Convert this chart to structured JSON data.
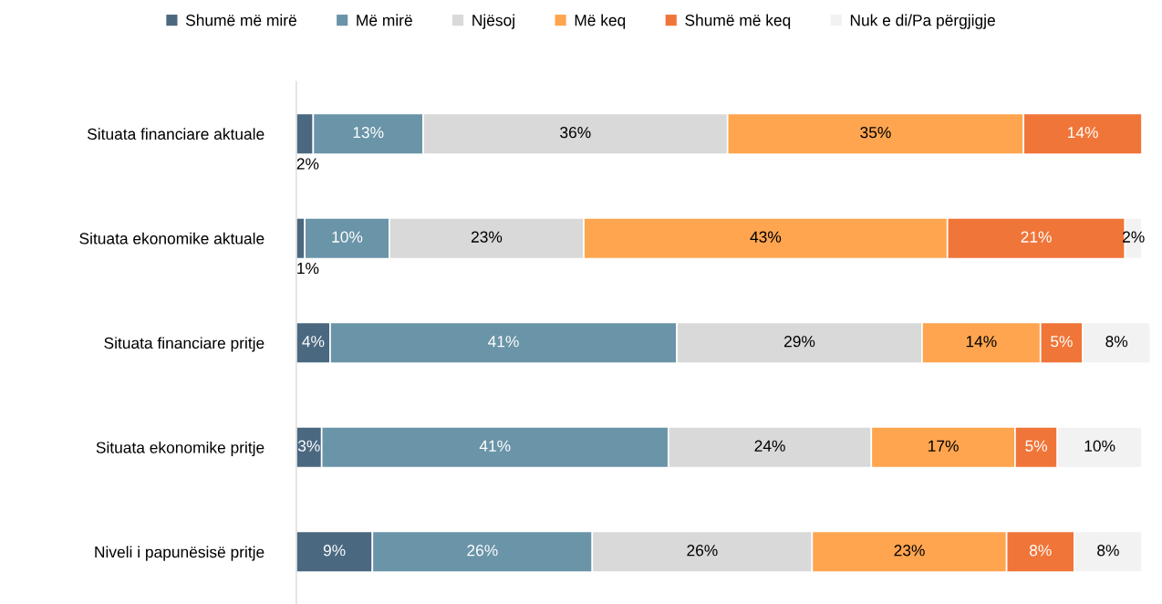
{
  "chart_data": {
    "type": "bar",
    "orientation": "horizontal",
    "stacked": true,
    "legend": "top",
    "grid": false,
    "tick_labels": "y",
    "categories": [
      "Situata financiare aktuale",
      "Situata ekonomike aktuale",
      "Situata financiare pritje",
      "Situata ekonomike pritje",
      "Niveli i papunësisë pritje"
    ],
    "series": [
      {
        "name": "Shumë më mirë",
        "color": "#4a6880",
        "values": [
          2,
          1,
          4,
          3,
          9
        ],
        "value_labels": [
          "2%",
          "1%",
          "4%",
          "3%",
          "9%"
        ]
      },
      {
        "name": "Më mirë",
        "color": "#6a94a8",
        "values": [
          13,
          10,
          41,
          41,
          26
        ],
        "value_labels": [
          "13%",
          "10%",
          "41%",
          "41%",
          "26%"
        ]
      },
      {
        "name": "Njësoj",
        "color": "#d9d9d9",
        "values": [
          36,
          23,
          29,
          24,
          26
        ],
        "value_labels": [
          "36%",
          "23%",
          "29%",
          "24%",
          "26%"
        ]
      },
      {
        "name": "Më keq",
        "color": "#ffa54f",
        "values": [
          35,
          43,
          14,
          17,
          23
        ],
        "value_labels": [
          "35%",
          "43%",
          "14%",
          "17%",
          "23%"
        ]
      },
      {
        "name": "Shumë më keq",
        "color": "#f07538",
        "values": [
          14,
          21,
          5,
          5,
          8
        ],
        "value_labels": [
          "14%",
          "21%",
          "5%",
          "5%",
          "8%"
        ]
      },
      {
        "name": "Nuk e di/Pa përgjigje",
        "color": "#f2f2f2",
        "values": [
          null,
          2,
          8,
          10,
          8
        ],
        "value_labels": [
          null,
          "2%",
          "8%",
          "10%",
          "8%"
        ]
      }
    ]
  }
}
